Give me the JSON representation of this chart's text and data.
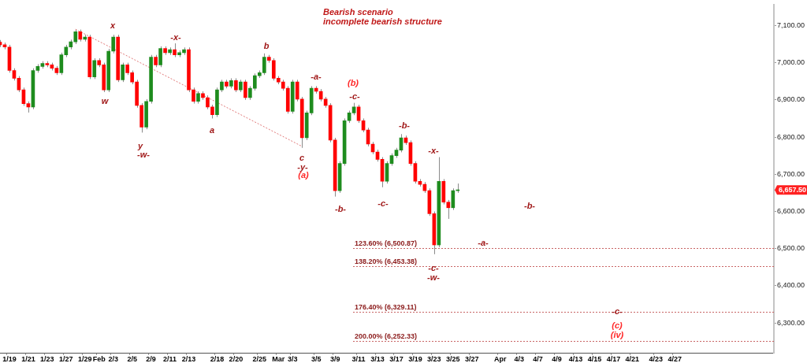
{
  "chart_data": {
    "type": "candlestick",
    "title": "Bearish scenario",
    "subtitle": "incomplete bearish structure",
    "categories": [
      null,
      null,
      "1/19",
      null,
      null,
      null,
      "1/21",
      null,
      null,
      null,
      "1/23",
      null,
      null,
      null,
      "1/27",
      null,
      null,
      null,
      "1/29",
      null,
      null,
      "Feb",
      null,
      null,
      "2/3",
      null,
      null,
      null,
      "2/5",
      null,
      null,
      null,
      "2/9",
      null,
      null,
      null,
      "2/11",
      null,
      null,
      null,
      "2/13",
      null,
      null,
      null,
      null,
      null,
      "2/18",
      null,
      null,
      null,
      "2/20",
      null,
      null,
      null,
      null,
      "2/25",
      null,
      null,
      null,
      "Mar",
      null,
      null,
      "3/3",
      null,
      null,
      null,
      null,
      "3/5",
      null,
      null,
      null,
      "3/9",
      null,
      null,
      null,
      null,
      "3/11",
      null,
      null,
      null,
      "3/13",
      null,
      null,
      null,
      "3/17",
      null,
      null,
      null,
      "3/19",
      null,
      null,
      null,
      "3/23",
      null,
      null,
      null,
      "3/25",
      null,
      null,
      null,
      "3/27",
      null,
      null,
      null,
      null,
      null,
      "Apr",
      null,
      null,
      null,
      "4/3",
      null,
      null,
      null,
      "4/7",
      null,
      null,
      null,
      "4/9",
      null,
      null,
      null,
      "4/13",
      null,
      null,
      null,
      "4/15",
      null,
      null,
      null,
      "4/17",
      null,
      null,
      null,
      "4/21",
      null,
      null,
      null,
      null,
      "4/23",
      null,
      null,
      null,
      "4/27",
      null,
      null,
      null,
      null,
      null,
      null,
      null,
      null,
      null,
      null,
      null,
      null,
      null,
      null,
      null,
      null,
      null,
      null,
      null,
      null,
      null
    ],
    "ohlc": [
      [
        7055,
        7061,
        7042,
        7048
      ],
      [
        7048,
        7054,
        7036,
        7042
      ],
      [
        7042,
        7048,
        6973,
        6979
      ],
      [
        6979,
        6985,
        6952,
        6958
      ],
      [
        6958,
        6964,
        6921,
        6927
      ],
      [
        6927,
        6933,
        6884,
        6890
      ],
      [
        6890,
        6896,
        6866,
        6881
      ],
      [
        6881,
        6985,
        6875,
        6979
      ],
      [
        6979,
        6996,
        6973,
        6990
      ],
      [
        6990,
        7004,
        6984,
        6998
      ],
      [
        6998,
        7004,
        6988,
        6994
      ],
      [
        6994,
        7000,
        6979,
        6985
      ],
      [
        6985,
        6991,
        6967,
        6973
      ],
      [
        6973,
        7027,
        6967,
        7021
      ],
      [
        7021,
        7048,
        7015,
        7042
      ],
      [
        7042,
        7062,
        7036,
        7056
      ],
      [
        7056,
        7090,
        7050,
        7083
      ],
      [
        7083,
        7089,
        7057,
        7063
      ],
      [
        7063,
        7075,
        7057,
        7069
      ],
      [
        7069,
        7075,
        6956,
        6962
      ],
      [
        6962,
        7012,
        6956,
        7006
      ],
      [
        7006,
        7012,
        6988,
        6994
      ],
      [
        6994,
        7000,
        6921,
        6927
      ],
      [
        6927,
        7037,
        6921,
        7031
      ],
      [
        7031,
        7075,
        7025,
        7069
      ],
      [
        7069,
        7075,
        6948,
        6954
      ],
      [
        6954,
        7000,
        6948,
        6994
      ],
      [
        6994,
        7000,
        6967,
        6973
      ],
      [
        6973,
        6979,
        6942,
        6948
      ],
      [
        6948,
        6954,
        6879,
        6885
      ],
      [
        6885,
        6891,
        6812,
        6827
      ],
      [
        6827,
        6902,
        6821,
        6896
      ],
      [
        6896,
        7021,
        6890,
        7015
      ],
      [
        7015,
        7021,
        6988,
        6994
      ],
      [
        6994,
        7044,
        6988,
        7038
      ],
      [
        7038,
        7044,
        7021,
        7027
      ],
      [
        7027,
        7041,
        7021,
        7035
      ],
      [
        7035,
        7052,
        7015,
        7021
      ],
      [
        7021,
        7033,
        7015,
        7027
      ],
      [
        7027,
        7041,
        7021,
        7035
      ],
      [
        7035,
        7041,
        6921,
        6927
      ],
      [
        6927,
        6933,
        6890,
        6896
      ],
      [
        6896,
        6923,
        6890,
        6917
      ],
      [
        6917,
        6923,
        6900,
        6906
      ],
      [
        6906,
        6912,
        6875,
        6881
      ],
      [
        6881,
        6887,
        6850,
        6860
      ],
      [
        6860,
        6933,
        6854,
        6927
      ],
      [
        6927,
        6954,
        6921,
        6948
      ],
      [
        6948,
        6954,
        6931,
        6937
      ],
      [
        6937,
        6958,
        6931,
        6952
      ],
      [
        6952,
        6958,
        6921,
        6927
      ],
      [
        6927,
        6954,
        6921,
        6948
      ],
      [
        6948,
        6954,
        6900,
        6906
      ],
      [
        6906,
        6937,
        6900,
        6931
      ],
      [
        6931,
        6971,
        6925,
        6965
      ],
      [
        6965,
        6979,
        6959,
        6973
      ],
      [
        6973,
        7025,
        6967,
        7015
      ],
      [
        7015,
        7021,
        7000,
        7006
      ],
      [
        7006,
        7012,
        6952,
        6958
      ],
      [
        6958,
        6964,
        6942,
        6948
      ],
      [
        6948,
        6954,
        6925,
        6931
      ],
      [
        6931,
        6937,
        6863,
        6869
      ],
      [
        6869,
        6954,
        6863,
        6948
      ],
      [
        6948,
        6954,
        6896,
        6902
      ],
      [
        6902,
        6908,
        6771,
        6798
      ],
      [
        6798,
        6871,
        6792,
        6865
      ],
      [
        6865,
        6937,
        6859,
        6931
      ],
      [
        6931,
        6937,
        6917,
        6923
      ],
      [
        6923,
        6929,
        6896,
        6902
      ],
      [
        6902,
        6908,
        6879,
        6885
      ],
      [
        6885,
        6891,
        6786,
        6792
      ],
      [
        6792,
        6798,
        6640,
        6656
      ],
      [
        6656,
        6735,
        6650,
        6729
      ],
      [
        6729,
        6850,
        6723,
        6844
      ],
      [
        6844,
        6871,
        6838,
        6865
      ],
      [
        6865,
        6892,
        6859,
        6881
      ],
      [
        6881,
        6887,
        6838,
        6844
      ],
      [
        6844,
        6850,
        6813,
        6819
      ],
      [
        6819,
        6825,
        6775,
        6781
      ],
      [
        6781,
        6787,
        6754,
        6760
      ],
      [
        6760,
        6766,
        6734,
        6740
      ],
      [
        6740,
        6746,
        6665,
        6681
      ],
      [
        6681,
        6735,
        6675,
        6729
      ],
      [
        6729,
        6756,
        6723,
        6750
      ],
      [
        6750,
        6771,
        6744,
        6765
      ],
      [
        6765,
        6808,
        6759,
        6798
      ],
      [
        6798,
        6804,
        6779,
        6785
      ],
      [
        6785,
        6791,
        6723,
        6729
      ],
      [
        6729,
        6735,
        6675,
        6681
      ],
      [
        6681,
        6687,
        6667,
        6673
      ],
      [
        6673,
        6679,
        6650,
        6656
      ],
      [
        6656,
        6662,
        6588,
        6594
      ],
      [
        6594,
        6600,
        6485,
        6510
      ],
      [
        6510,
        6746,
        6504,
        6681
      ],
      [
        6681,
        6687,
        6619,
        6625
      ],
      [
        6625,
        6631,
        6580,
        6610
      ],
      [
        6610,
        6662,
        6604,
        6656
      ],
      [
        6656,
        6675,
        6650,
        6657.5
      ],
      null,
      null,
      null,
      null,
      null,
      null,
      null,
      null,
      null,
      null,
      null,
      null,
      null,
      null,
      null,
      null,
      null,
      null,
      null,
      null,
      null,
      null,
      null,
      null,
      null,
      null,
      null,
      null,
      null,
      null,
      null,
      null,
      null,
      null,
      null,
      null,
      null,
      null,
      null,
      null,
      null,
      null,
      null,
      null,
      null,
      null,
      null,
      null,
      null,
      null,
      null,
      null,
      null,
      null,
      null,
      null,
      null,
      null,
      null,
      null,
      null,
      null,
      null,
      null,
      null,
      null,
      null
    ],
    "colors": [
      "#ff0000",
      "#ff0000",
      "#ff0000",
      "#ff0000",
      "#ff0000",
      "#ff0000",
      "#ff0000",
      "#1e8c1e",
      "#1e8c1e",
      "#1e8c1e",
      "#ff0000",
      "#ff0000",
      "#ff0000",
      "#1e8c1e",
      "#1e8c1e",
      "#1e8c1e",
      "#1e8c1e",
      "#ff0000",
      "#1e8c1e",
      "#ff0000",
      "#1e8c1e",
      "#ff0000",
      "#ff0000",
      "#1e8c1e",
      "#1e8c1e",
      "#ff0000",
      "#1e8c1e",
      "#ff0000",
      "#ff0000",
      "#ff0000",
      "#ff0000",
      "#1e8c1e",
      "#1e8c1e",
      "#ff0000",
      "#1e8c1e",
      "#ff0000",
      "#1e8c1e",
      "#ff0000",
      "#1e8c1e",
      "#1e8c1e",
      "#ff0000",
      "#ff0000",
      "#1e8c1e",
      "#ff0000",
      "#ff0000",
      "#ff0000",
      "#1e8c1e",
      "#1e8c1e",
      "#ff0000",
      "#1e8c1e",
      "#ff0000",
      "#1e8c1e",
      "#ff0000",
      "#1e8c1e",
      "#1e8c1e",
      "#1e8c1e",
      "#1e8c1e",
      "#ff0000",
      "#ff0000",
      "#ff0000",
      "#ff0000",
      "#ff0000",
      "#1e8c1e",
      "#ff0000",
      "#ff0000",
      "#1e8c1e",
      "#1e8c1e",
      "#ff0000",
      "#ff0000",
      "#ff0000",
      "#ff0000",
      "#ff0000",
      "#1e8c1e",
      "#1e8c1e",
      "#1e8c1e",
      "#1e8c1e",
      "#ff0000",
      "#ff0000",
      "#ff0000",
      "#ff0000",
      "#ff0000",
      "#ff0000",
      "#1e8c1e",
      "#1e8c1e",
      "#1e8c1e",
      "#1e8c1e",
      "#ff0000",
      "#ff0000",
      "#ff0000",
      "#ff0000",
      "#ff0000",
      "#ff0000",
      "#ff0000",
      "#1e8c1e",
      "#ff0000",
      "#ff0000",
      "#1e8c1e",
      "#1e8c1e",
      null,
      null,
      null,
      null,
      null,
      null,
      null,
      null,
      null,
      null,
      null,
      null,
      null,
      null,
      null,
      null,
      null,
      null,
      null,
      null,
      null,
      null,
      null,
      null,
      null,
      null,
      null,
      null,
      null,
      null,
      null,
      null,
      null,
      null,
      null,
      null,
      null,
      null,
      null,
      null,
      null,
      null,
      null,
      null,
      null,
      null,
      null,
      null,
      null,
      null,
      null,
      null,
      null,
      null,
      null,
      null,
      null,
      null,
      null,
      null,
      null,
      null,
      null,
      null,
      null,
      null,
      null
    ],
    "ylim": [
      6220,
      7155
    ],
    "yticks": [
      {
        "value": 6300,
        "label": "6,300.00"
      },
      {
        "value": 6400,
        "label": "6,400.00"
      },
      {
        "value": 6500,
        "label": "6,500.00"
      },
      {
        "value": 6600,
        "label": "6,600.00"
      },
      {
        "value": 6700,
        "label": "6,700.00"
      },
      {
        "value": 6800,
        "label": "6,800.00"
      },
      {
        "value": 6900,
        "label": "6,900.00"
      },
      {
        "value": 7000,
        "label": "7,000.00"
      },
      {
        "value": 7100,
        "label": "7,100.00"
      }
    ],
    "series": [
      {
        "type": "line",
        "values": [
          null,
          null,
          null,
          null,
          null,
          null,
          null,
          null,
          null,
          null,
          null,
          null,
          null,
          null,
          null,
          null,
          7090,
          null,
          null,
          null,
          null,
          null,
          null,
          null,
          null,
          null,
          null,
          null,
          null,
          null,
          null,
          null,
          null,
          null,
          null,
          null,
          null,
          null,
          null,
          null,
          null,
          null,
          null,
          null,
          null,
          null,
          null,
          null,
          null,
          null,
          null,
          null,
          null,
          null,
          null,
          null,
          null,
          null,
          null,
          null,
          null,
          null,
          null,
          null,
          6775,
          null,
          null,
          null,
          null,
          null,
          null,
          null,
          null,
          null,
          null,
          null,
          null,
          null,
          null,
          null,
          null,
          null,
          null,
          null,
          null,
          null,
          null,
          null,
          null,
          null,
          null,
          null,
          null,
          null,
          null,
          null,
          null,
          null,
          null,
          null,
          null,
          null,
          null,
          null,
          null,
          null,
          null,
          null,
          null,
          null,
          null,
          null,
          null,
          null,
          null,
          null,
          null,
          null,
          null,
          null,
          null,
          null,
          null,
          null,
          null,
          null,
          null,
          null,
          null,
          null,
          null,
          null,
          null,
          null,
          null,
          null,
          null,
          null,
          null,
          null,
          null,
          null,
          null,
          null,
          null,
          null,
          null,
          null,
          null,
          null,
          null,
          null,
          null,
          null,
          null,
          null,
          null,
          null,
          null,
          null,
          null,
          null,
          null,
          null,
          null
        ],
        "color": "#e07878",
        "line_style": "dotted"
      }
    ],
    "ref_lines": [
      {
        "axis": "y",
        "value": 6500.87,
        "label": "123.60% (6,500.87)",
        "color": "#c86464",
        "line_style": "dotted"
      },
      {
        "axis": "y",
        "value": 6453.38,
        "label": "138.20% (6,453.38)",
        "color": "#c86464",
        "line_style": "dotted"
      },
      {
        "axis": "y",
        "value": 6329.11,
        "label": "176.40% (6,329.11)",
        "color": "#c86464",
        "line_style": "dotted"
      },
      {
        "axis": "y",
        "value": 6252.33,
        "label": "200.00% (6,252.33)",
        "color": "#c86464",
        "line_style": "dotted"
      }
    ],
    "annotations": [
      "x",
      "w",
      "y",
      "-w-",
      "-x-",
      "a",
      "b",
      "c",
      "-y-",
      "(a)",
      "-a-",
      "(b)",
      "-c-",
      "-b-",
      "-c-",
      "-b-",
      "-x-",
      "-c-",
      "-w-",
      "-a-",
      "-b-",
      "-c-",
      "(c)",
      "(iv)",
      "6,657.50"
    ]
  }
}
